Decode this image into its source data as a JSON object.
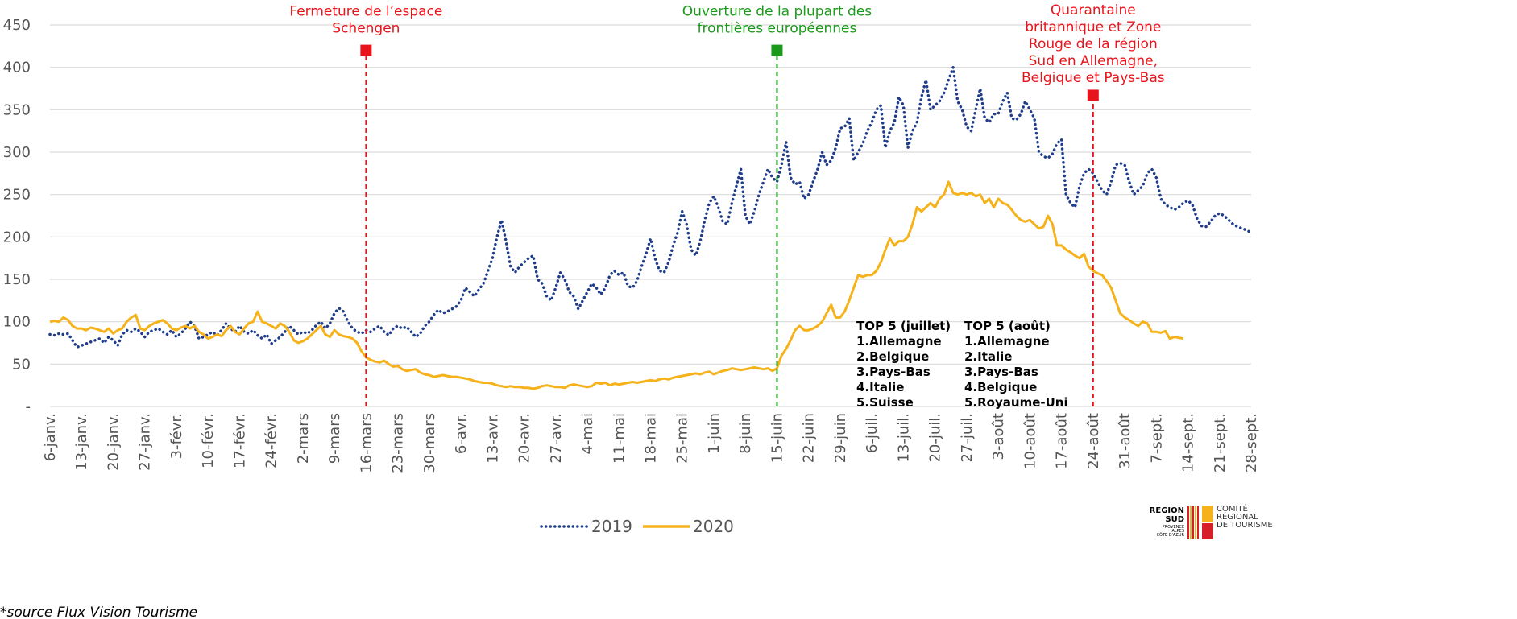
{
  "chart_data": {
    "type": "line",
    "categories": [
      "6-janv.",
      null,
      null,
      null,
      null,
      null,
      null,
      "13-janv.",
      null,
      null,
      null,
      null,
      null,
      null,
      "20-janv.",
      null,
      null,
      null,
      null,
      null,
      null,
      "27-janv.",
      null,
      null,
      null,
      null,
      null,
      null,
      "3-févr.",
      null,
      null,
      null,
      null,
      null,
      null,
      "10-févr.",
      null,
      null,
      null,
      null,
      null,
      null,
      "17-févr.",
      null,
      null,
      null,
      null,
      null,
      null,
      "24-févr.",
      null,
      null,
      null,
      null,
      null,
      null,
      "2-mars",
      null,
      null,
      null,
      null,
      null,
      null,
      "9-mars",
      null,
      null,
      null,
      null,
      null,
      null,
      "16-mars",
      null,
      null,
      null,
      null,
      null,
      null,
      "23-mars",
      null,
      null,
      null,
      null,
      null,
      null,
      "30-mars",
      null,
      null,
      null,
      null,
      null,
      null,
      "6-avr.",
      null,
      null,
      null,
      null,
      null,
      null,
      "13-avr.",
      null,
      null,
      null,
      null,
      null,
      null,
      "20-avr.",
      null,
      null,
      null,
      null,
      null,
      null,
      "27-avr.",
      null,
      null,
      null,
      null,
      null,
      null,
      "4-mai",
      null,
      null,
      null,
      null,
      null,
      null,
      "11-mai",
      null,
      null,
      null,
      null,
      null,
      null,
      "18-mai",
      null,
      null,
      null,
      null,
      null,
      null,
      "25-mai",
      null,
      null,
      null,
      null,
      null,
      null,
      "1-juin",
      null,
      null,
      null,
      null,
      null,
      null,
      "8-juin",
      null,
      null,
      null,
      null,
      null,
      null,
      "15-juin",
      null,
      null,
      null,
      null,
      null,
      null,
      "22-juin",
      null,
      null,
      null,
      null,
      null,
      null,
      "29-juin",
      null,
      null,
      null,
      null,
      null,
      null,
      "6-juil.",
      null,
      null,
      null,
      null,
      null,
      null,
      "13-juil.",
      null,
      null,
      null,
      null,
      null,
      null,
      "20-juil.",
      null,
      null,
      null,
      null,
      null,
      null,
      "27-juil.",
      null,
      null,
      null,
      null,
      null,
      null,
      "3-août",
      null,
      null,
      null,
      null,
      null,
      null,
      "10-août",
      null,
      null,
      null,
      null,
      null,
      null,
      "17-août",
      null,
      null,
      null,
      null,
      null,
      null,
      "24-août",
      null,
      null,
      null,
      null,
      null,
      null,
      "31-août",
      null,
      null,
      null,
      null,
      null,
      null,
      "7-sept.",
      null,
      null,
      null,
      null,
      null,
      null,
      "14-sept.",
      null,
      null,
      null,
      null,
      null,
      null,
      "21-sept.",
      null,
      null,
      null,
      null,
      null,
      null,
      "28-sept."
    ],
    "series": [
      {
        "name": "2019",
        "color": "#1f3d8a",
        "dash": "dotted",
        "values": [
          85,
          84,
          86,
          85,
          86,
          78,
          70,
          72,
          74,
          76,
          78,
          80,
          75,
          82,
          78,
          72,
          85,
          90,
          88,
          92,
          88,
          82,
          88,
          90,
          92,
          88,
          85,
          90,
          82,
          86,
          92,
          100,
          95,
          80,
          82,
          85,
          88,
          84,
          90,
          98,
          92,
          88,
          95,
          88,
          86,
          90,
          84,
          80,
          85,
          74,
          78,
          82,
          88,
          95,
          90,
          85,
          88,
          86,
          90,
          96,
          100,
          92,
          98,
          110,
          116,
          112,
          100,
          92,
          88,
          86,
          90,
          88,
          92,
          95,
          88,
          84,
          92,
          95,
          92,
          94,
          88,
          82,
          86,
          95,
          100,
          108,
          114,
          110,
          112,
          115,
          118,
          125,
          140,
          135,
          130,
          138,
          145,
          160,
          175,
          200,
          220,
          195,
          165,
          158,
          165,
          170,
          175,
          178,
          150,
          145,
          130,
          125,
          140,
          158,
          150,
          135,
          130,
          115,
          125,
          135,
          145,
          140,
          132,
          140,
          155,
          160,
          155,
          158,
          142,
          140,
          148,
          165,
          180,
          198,
          175,
          160,
          158,
          170,
          190,
          205,
          230,
          215,
          185,
          178,
          195,
          220,
          240,
          248,
          235,
          218,
          215,
          240,
          260,
          280,
          225,
          215,
          230,
          250,
          265,
          280,
          270,
          265,
          285,
          312,
          270,
          262,
          265,
          245,
          250,
          265,
          280,
          300,
          285,
          290,
          305,
          328,
          330,
          340,
          290,
          300,
          310,
          325,
          335,
          350,
          355,
          305,
          325,
          335,
          365,
          355,
          305,
          325,
          335,
          365,
          385,
          350,
          355,
          360,
          370,
          385,
          400,
          360,
          350,
          330,
          325,
          350,
          375,
          340,
          335,
          345,
          345,
          360,
          370,
          340,
          338,
          345,
          360,
          350,
          340,
          300,
          295,
          293,
          298,
          310,
          315,
          250,
          240,
          235,
          260,
          275,
          280,
          275,
          265,
          255,
          250,
          265,
          285,
          287,
          285,
          265,
          250,
          255,
          260,
          275,
          280,
          270,
          245,
          238,
          235,
          232,
          235,
          240,
          243,
          238,
          222,
          213,
          212,
          218,
          225,
          228,
          225,
          220,
          215,
          212,
          210,
          208,
          205
        ]
      },
      {
        "name": "2020",
        "color": "#f5b21b",
        "dash": "solid",
        "values": [
          100,
          101,
          100,
          105,
          102,
          95,
          92,
          92,
          90,
          93,
          92,
          90,
          88,
          92,
          86,
          90,
          92,
          100,
          105,
          108,
          92,
          90,
          95,
          98,
          100,
          102,
          98,
          92,
          90,
          93,
          95,
          92,
          95,
          88,
          85,
          80,
          82,
          85,
          83,
          90,
          95,
          88,
          85,
          92,
          98,
          100,
          112,
          100,
          98,
          95,
          92,
          98,
          95,
          88,
          78,
          75,
          77,
          80,
          85,
          90,
          95,
          85,
          82,
          90,
          85,
          83,
          82,
          80,
          75,
          65,
          58,
          55,
          53,
          52,
          54,
          50,
          47,
          48,
          44,
          42,
          43,
          44,
          40,
          38,
          37,
          35,
          36,
          37,
          36,
          35,
          35,
          34,
          33,
          32,
          30,
          29,
          28,
          28,
          27,
          25,
          24,
          23,
          24,
          23,
          23,
          22,
          22,
          21,
          22,
          24,
          25,
          24,
          23,
          23,
          22,
          25,
          26,
          25,
          24,
          23,
          24,
          28,
          27,
          28,
          25,
          27,
          26,
          27,
          28,
          29,
          28,
          29,
          30,
          31,
          30,
          32,
          33,
          32,
          34,
          35,
          36,
          37,
          38,
          39,
          38,
          40,
          41,
          38,
          40,
          42,
          43,
          45,
          44,
          43,
          44,
          45,
          46,
          45,
          44,
          45,
          42,
          45,
          60,
          68,
          78,
          90,
          95,
          90,
          90,
          92,
          95,
          100,
          110,
          120,
          105,
          105,
          112,
          125,
          140,
          155,
          153,
          155,
          155,
          160,
          170,
          185,
          198,
          190,
          195,
          195,
          200,
          215,
          235,
          230,
          235,
          240,
          235,
          245,
          250,
          265,
          252,
          250,
          252,
          250,
          252,
          248,
          250,
          240,
          245,
          235,
          245,
          240,
          238,
          232,
          225,
          220,
          218,
          220,
          215,
          210,
          212,
          225,
          215,
          190,
          190,
          185,
          182,
          178,
          175,
          180,
          165,
          160,
          157,
          155,
          148,
          140,
          125,
          110,
          105,
          102,
          98,
          95,
          100,
          98,
          88,
          88,
          87,
          89,
          80,
          82,
          81,
          80,
          null,
          null,
          null,
          null,
          null,
          null,
          null,
          null,
          null,
          null,
          null,
          null,
          null,
          null,
          null
        ]
      }
    ],
    "ylim": [
      0,
      450
    ],
    "yticks": [
      {
        "value": 0,
        "label": "-"
      },
      50,
      100,
      150,
      200,
      250,
      300,
      350,
      400,
      450
    ],
    "grid": true,
    "events": [
      {
        "label": [
          "Fermeture de l’espace",
          "Schengen"
        ],
        "at": "16-mars",
        "y": 420,
        "color": "#e8141b"
      },
      {
        "label": [
          "Ouverture de la plupart des",
          "frontières européennes"
        ],
        "at": "15-juin",
        "y": 420,
        "color": "#1a9a1a"
      },
      {
        "label": [
          "Quarantaine",
          "britannique et Zone",
          "Rouge de la région",
          "Sud en Allemagne,",
          "Belgique et Pays-Bas"
        ],
        "at": "24-août",
        "y": 367,
        "color": "#e8141b"
      }
    ],
    "notes": [
      {
        "title": "TOP 5 (juillet)",
        "items": [
          "1.Allemagne",
          "2.Belgique",
          "3.Pays-Bas",
          "4.Italie",
          "5.Suisse"
        ]
      },
      {
        "title": "TOP 5 (août)",
        "items": [
          "1.Allemagne",
          "2.Italie",
          "3.Pays-Bas",
          "4.Belgique",
          "5.Royaume-Uni"
        ]
      }
    ],
    "source": "*source Flux Vision Tourisme"
  },
  "logo": {
    "region": [
      "RÉGION",
      "SUD"
    ],
    "sub": [
      "PROVENCE",
      "ALPES",
      "CÔTE D'AZUR"
    ],
    "committee": [
      "COMITÉ",
      "RÉGIONAL",
      "DE TOURISME"
    ]
  }
}
